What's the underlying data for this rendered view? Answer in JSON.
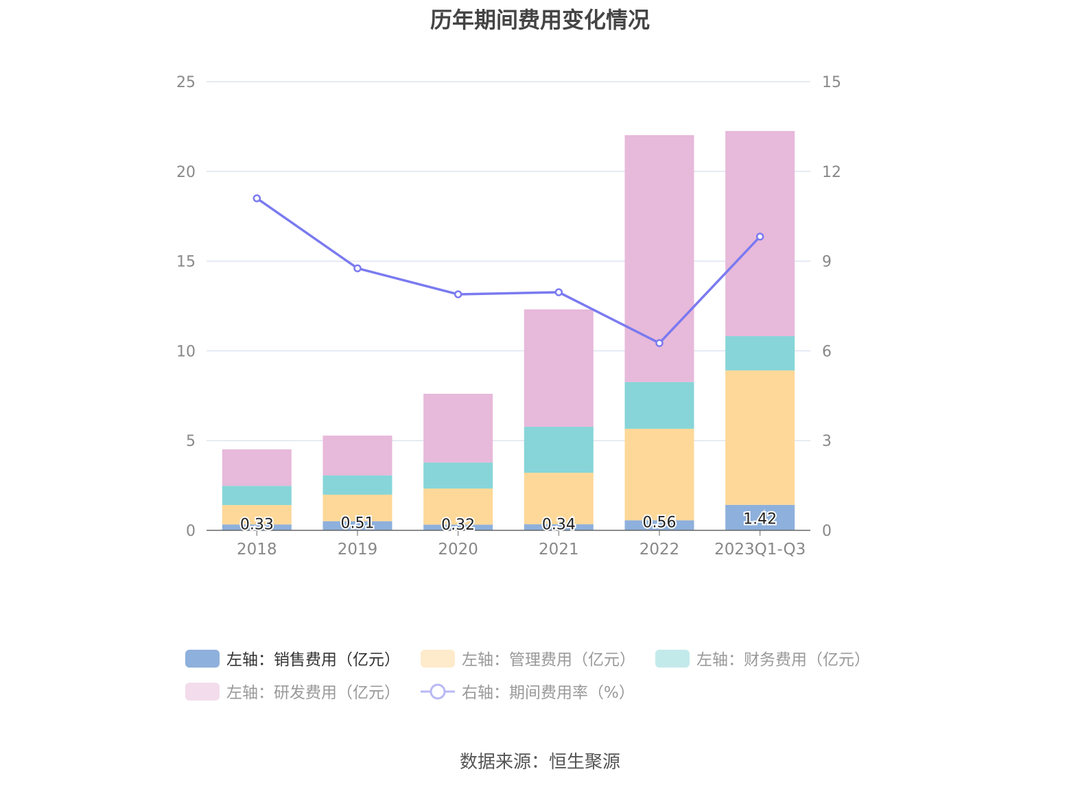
{
  "chart_data": {
    "type": "bar",
    "stacked": true,
    "title": "历年期间费用变化情况",
    "categories": [
      "2018",
      "2019",
      "2020",
      "2021",
      "2022",
      "2023Q1-Q3"
    ],
    "left_axis": {
      "ylim": [
        0,
        25
      ],
      "ticks": [
        0,
        5,
        10,
        15,
        20,
        25
      ]
    },
    "right_axis": {
      "ylim": [
        0,
        15
      ],
      "ticks": [
        0,
        3,
        6,
        9,
        12,
        15
      ]
    },
    "grid": true,
    "legend_position": "bottom",
    "series": [
      {
        "name": "左轴：销售费用（亿元）",
        "type": "bar",
        "axis": "left",
        "color": "#8eb0dc",
        "values": [
          0.33,
          0.51,
          0.32,
          0.34,
          0.56,
          1.42
        ],
        "labels": [
          "0.33",
          "0.51",
          "0.32",
          "0.34",
          "0.56",
          "1.42"
        ]
      },
      {
        "name": "左轴：管理费用（亿元）",
        "type": "bar",
        "axis": "left",
        "color": "#fed898",
        "values": [
          1.08,
          1.48,
          2.01,
          2.87,
          5.1,
          7.49
        ]
      },
      {
        "name": "左轴：财务费用（亿元）",
        "type": "bar",
        "axis": "left",
        "color": "#87d5d8",
        "values": [
          1.07,
          1.07,
          1.45,
          2.56,
          2.6,
          1.91
        ]
      },
      {
        "name": "左轴：研发费用（亿元）",
        "type": "bar",
        "axis": "left",
        "color": "#e7b9da",
        "values": [
          2.03,
          2.22,
          3.83,
          6.54,
          13.76,
          11.43
        ]
      },
      {
        "name": "右轴：期间费用率（%）",
        "type": "line",
        "axis": "right",
        "color": "#7a7af0",
        "values": [
          11.1,
          8.76,
          7.89,
          7.96,
          6.26,
          9.82
        ]
      }
    ]
  },
  "source": "数据来源：恒生聚源"
}
